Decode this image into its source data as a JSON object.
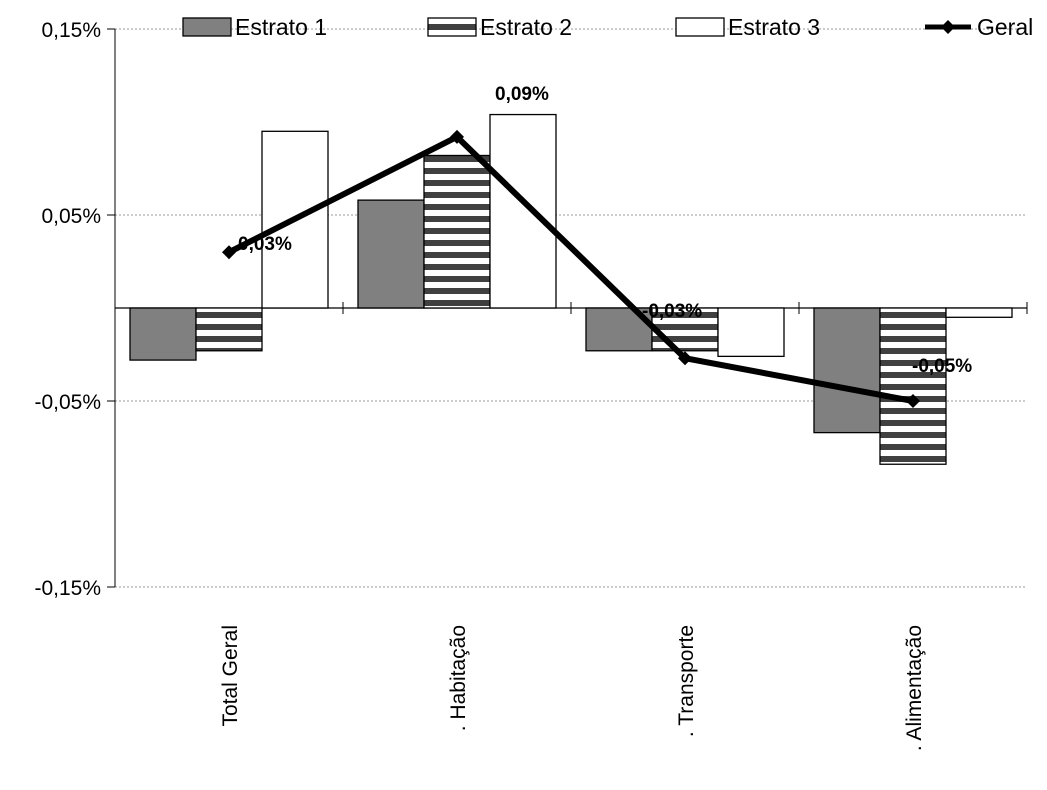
{
  "chart_data": {
    "type": "bar",
    "categories": [
      "Total Geral",
      ". Habitação",
      ". Transporte",
      ". Alimentação"
    ],
    "series": [
      {
        "name": "Estrato 1",
        "kind": "bar",
        "fill": "gray",
        "values": [
          -0.028,
          0.058,
          -0.023,
          -0.067
        ]
      },
      {
        "name": "Estrato 2",
        "kind": "bar",
        "fill": "horizontal-stripes",
        "values": [
          -0.023,
          0.082,
          -0.023,
          -0.084
        ]
      },
      {
        "name": "Estrato 3",
        "kind": "bar",
        "fill": "white",
        "values": [
          0.095,
          0.104,
          -0.026,
          -0.005
        ]
      },
      {
        "name": "Geral",
        "kind": "line",
        "marker": "diamond",
        "values": [
          0.03,
          0.092,
          -0.027,
          -0.05
        ]
      }
    ],
    "data_labels": [
      "0,03%",
      "0,09%",
      "-0,03%",
      "-0,05%"
    ],
    "yticks": [
      0.15,
      0.05,
      -0.05,
      -0.15
    ],
    "ytick_labels": [
      "0,15%",
      "0,05%",
      "-0,05%",
      "-0,15%"
    ],
    "ylim": [
      -0.15,
      0.15
    ],
    "grid": true,
    "legend_position": "top",
    "colors": {
      "estrato1": "#808080",
      "stripe_dark": "#404040",
      "stripe_light": "#ffffff",
      "line": "#000000",
      "grid": "#999999"
    }
  }
}
